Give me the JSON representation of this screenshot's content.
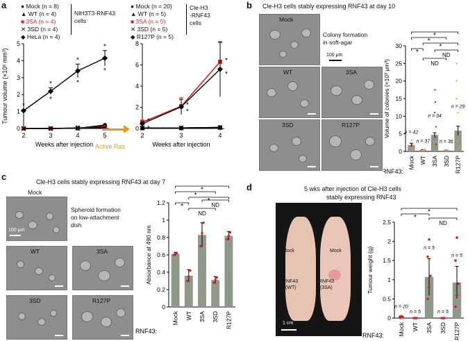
{
  "panel_a": {
    "label": "a",
    "left_legend": [
      {
        "text": "Mock (n = 8)",
        "marker": "circle",
        "color": "#000000"
      },
      {
        "text": "WT (n = 4)",
        "marker": "triangle",
        "color": "#000000"
      },
      {
        "text": "3SA (n = 4)",
        "marker": "square",
        "color": "#d6202a"
      },
      {
        "text": "3SD (n = 4)",
        "marker": "x",
        "color": "#000000"
      },
      {
        "text": "HeLa (n = 4)",
        "marker": "diamond",
        "color": "#000000"
      }
    ],
    "left_group_label_1": "NIH3T3-RNF43",
    "left_group_label_2": "cells",
    "right_legend": [
      {
        "text": "Mock (n = 20)",
        "marker": "circle",
        "color": "#000000"
      },
      {
        "text": "WT (n = 5)",
        "marker": "triangle",
        "color": "#000000"
      },
      {
        "text": "3SA (n = 5)",
        "marker": "square",
        "color": "#d6202a"
      },
      {
        "text": "3SD (n = 5)",
        "marker": "x",
        "color": "#000000"
      },
      {
        "text": "R127P (n = 5)",
        "marker": "diamond",
        "color": "#000000"
      }
    ],
    "right_group_label_1": "Cle-H3",
    "right_group_label_2": "-RNF43",
    "right_group_label_3": "cells",
    "ylabel": "Tumour volume (×10² mm³)",
    "xlabel": "Weeks after injection",
    "arrow_label_1": "+",
    "arrow_label_2": "Active Ras",
    "star": "*"
  },
  "panel_b": {
    "label": "b",
    "title": "Cle-H3 cells stably expressing RNF43 at day 10",
    "images": [
      "Mock",
      "WT",
      "3SA",
      "3SD",
      "R127P"
    ],
    "scale_text": "100 μm",
    "note_1": "Colony formation",
    "note_2": "in soft-agar",
    "ylabel": "Volume of colonies (×10³ μm³)",
    "row_label": "RNF43:",
    "sig": [
      "*",
      "*",
      "*",
      "*"
    ],
    "nd": [
      "ND",
      "ND"
    ],
    "n_labels": [
      "n = 42",
      "n = 37",
      "n = 34",
      "n = 36",
      "n = 29"
    ]
  },
  "panel_c": {
    "label": "c",
    "title": "Cle-H3 cells stably expressing RNF43 at day 7",
    "images": [
      "Mock",
      "WT",
      "3SA",
      "3SD",
      "R127P"
    ],
    "scale_text": "100 μm",
    "note_1": "Spheroid formation",
    "note_2": "on low-attachment",
    "note_3": "dish",
    "ylabel": "Absorbance at 490 nm",
    "row_label": "RNF43:",
    "sig": [
      "*",
      "*",
      "*",
      "*"
    ],
    "nd": [
      "ND",
      "ND"
    ]
  },
  "panel_d": {
    "label": "d",
    "title_1": "5 wks after injection of Cle-H3 cells",
    "title_2": "stably expressing RNF43",
    "photo_mock_1": "Mock",
    "photo_mock_2": "Mock",
    "photo_left_1": "RNF43",
    "photo_left_2": "(WT)",
    "photo_right_1": "RNF43",
    "photo_right_2": "(3SA)",
    "photo_scale": "1 cm",
    "ylabel": "Tumour weight (g)",
    "row_label": "RNF43:",
    "sig": [
      "*",
      "*"
    ],
    "nd": [
      "ND"
    ],
    "n_labels": [
      "n = 20",
      "n = 5",
      "n = 5",
      "n = 5",
      "n = 5"
    ]
  },
  "chart_data": [
    {
      "id": "a_left",
      "type": "line",
      "x": [
        2,
        3,
        4,
        5
      ],
      "xlabel": "Weeks after injection",
      "ylabel": "Tumour volume (×10² mm³)",
      "xlim": [
        2,
        5
      ],
      "ylim": [
        0,
        5
      ],
      "yticks": [
        0,
        1,
        2,
        3,
        4,
        5
      ],
      "series": [
        {
          "name": "Mock",
          "values": [
            0,
            0,
            0.02,
            0.2
          ],
          "color": "#000000",
          "marker": "circle"
        },
        {
          "name": "WT",
          "values": [
            0,
            0,
            0.02,
            0.15
          ],
          "color": "#000000",
          "marker": "triangle"
        },
        {
          "name": "3SA",
          "values": [
            0,
            0,
            0.04,
            0.08
          ],
          "color": "#d6202a",
          "marker": "square"
        },
        {
          "name": "3SD",
          "values": [
            0,
            0,
            0.02,
            0.05
          ],
          "color": "#000000",
          "marker": "x"
        },
        {
          "name": "HeLa",
          "values": [
            1.05,
            2.2,
            3.4,
            4.15
          ],
          "errors": [
            0.05,
            0.2,
            0.4,
            0.45
          ],
          "color": "#000000",
          "marker": "diamond"
        }
      ]
    },
    {
      "id": "a_right",
      "type": "line",
      "x": [
        2,
        3,
        4
      ],
      "xlabel": "Weeks after injection",
      "ylabel": "",
      "xlim": [
        2,
        4
      ],
      "ylim": [
        0,
        8
      ],
      "yticks": [
        0,
        2,
        4,
        6,
        8
      ],
      "series": [
        {
          "name": "Mock",
          "values": [
            0.05,
            0.05,
            0.1
          ],
          "color": "#000000",
          "marker": "circle"
        },
        {
          "name": "WT",
          "values": [
            0.05,
            0.05,
            0.1
          ],
          "color": "#000000",
          "marker": "triangle"
        },
        {
          "name": "3SA",
          "values": [
            0.6,
            2.1,
            6.3
          ],
          "errors": [
            0.2,
            0.8,
            1.8
          ],
          "color": "#d6202a",
          "marker": "square"
        },
        {
          "name": "3SD",
          "values": [
            0.05,
            0.05,
            0.1
          ],
          "color": "#000000",
          "marker": "x"
        },
        {
          "name": "R127P",
          "values": [
            0.45,
            2.05,
            5.6
          ],
          "errors": [
            0.15,
            0.7,
            2.6
          ],
          "color": "#000000",
          "marker": "diamond"
        }
      ]
    },
    {
      "id": "b_bar",
      "type": "bar",
      "categories": [
        "Mock",
        "WT",
        "3SA",
        "3SD",
        "R127P"
      ],
      "values": [
        1.8,
        0.4,
        4.7,
        0.3,
        5.9
      ],
      "errors": [
        0.5,
        0.1,
        0.6,
        0.1,
        1.3
      ],
      "ylabel": "Volume of colonies (×10³ μm³)",
      "ylim": [
        0,
        30
      ],
      "yticks": [
        0,
        5,
        10,
        15,
        20,
        25,
        30
      ]
    },
    {
      "id": "c_bar",
      "type": "bar",
      "categories": [
        "Mock",
        "WT",
        "3SA",
        "3SD",
        "R127P"
      ],
      "values": [
        0.61,
        0.36,
        0.83,
        0.31,
        0.82
      ],
      "errors": [
        0.02,
        0.07,
        0.14,
        0.04,
        0.05
      ],
      "ylabel": "Absorbance at 490 nm",
      "ylim": [
        0,
        1.2
      ],
      "yticks": [
        0,
        0.2,
        0.4,
        0.6,
        0.8,
        1.0,
        1.2
      ]
    },
    {
      "id": "d_bar",
      "type": "bar",
      "categories": [
        "Mock",
        "WT",
        "3SA",
        "3SD",
        "R127P"
      ],
      "values": [
        0.02,
        0,
        1.07,
        0,
        0.93
      ],
      "errors": [
        0.01,
        0,
        0.48,
        0,
        0.42
      ],
      "ylabel": "Tumour weight (g)",
      "ylim": [
        0,
        2.5
      ],
      "yticks": [
        0,
        0.5,
        1.0,
        1.5,
        2.0,
        2.5
      ]
    }
  ]
}
